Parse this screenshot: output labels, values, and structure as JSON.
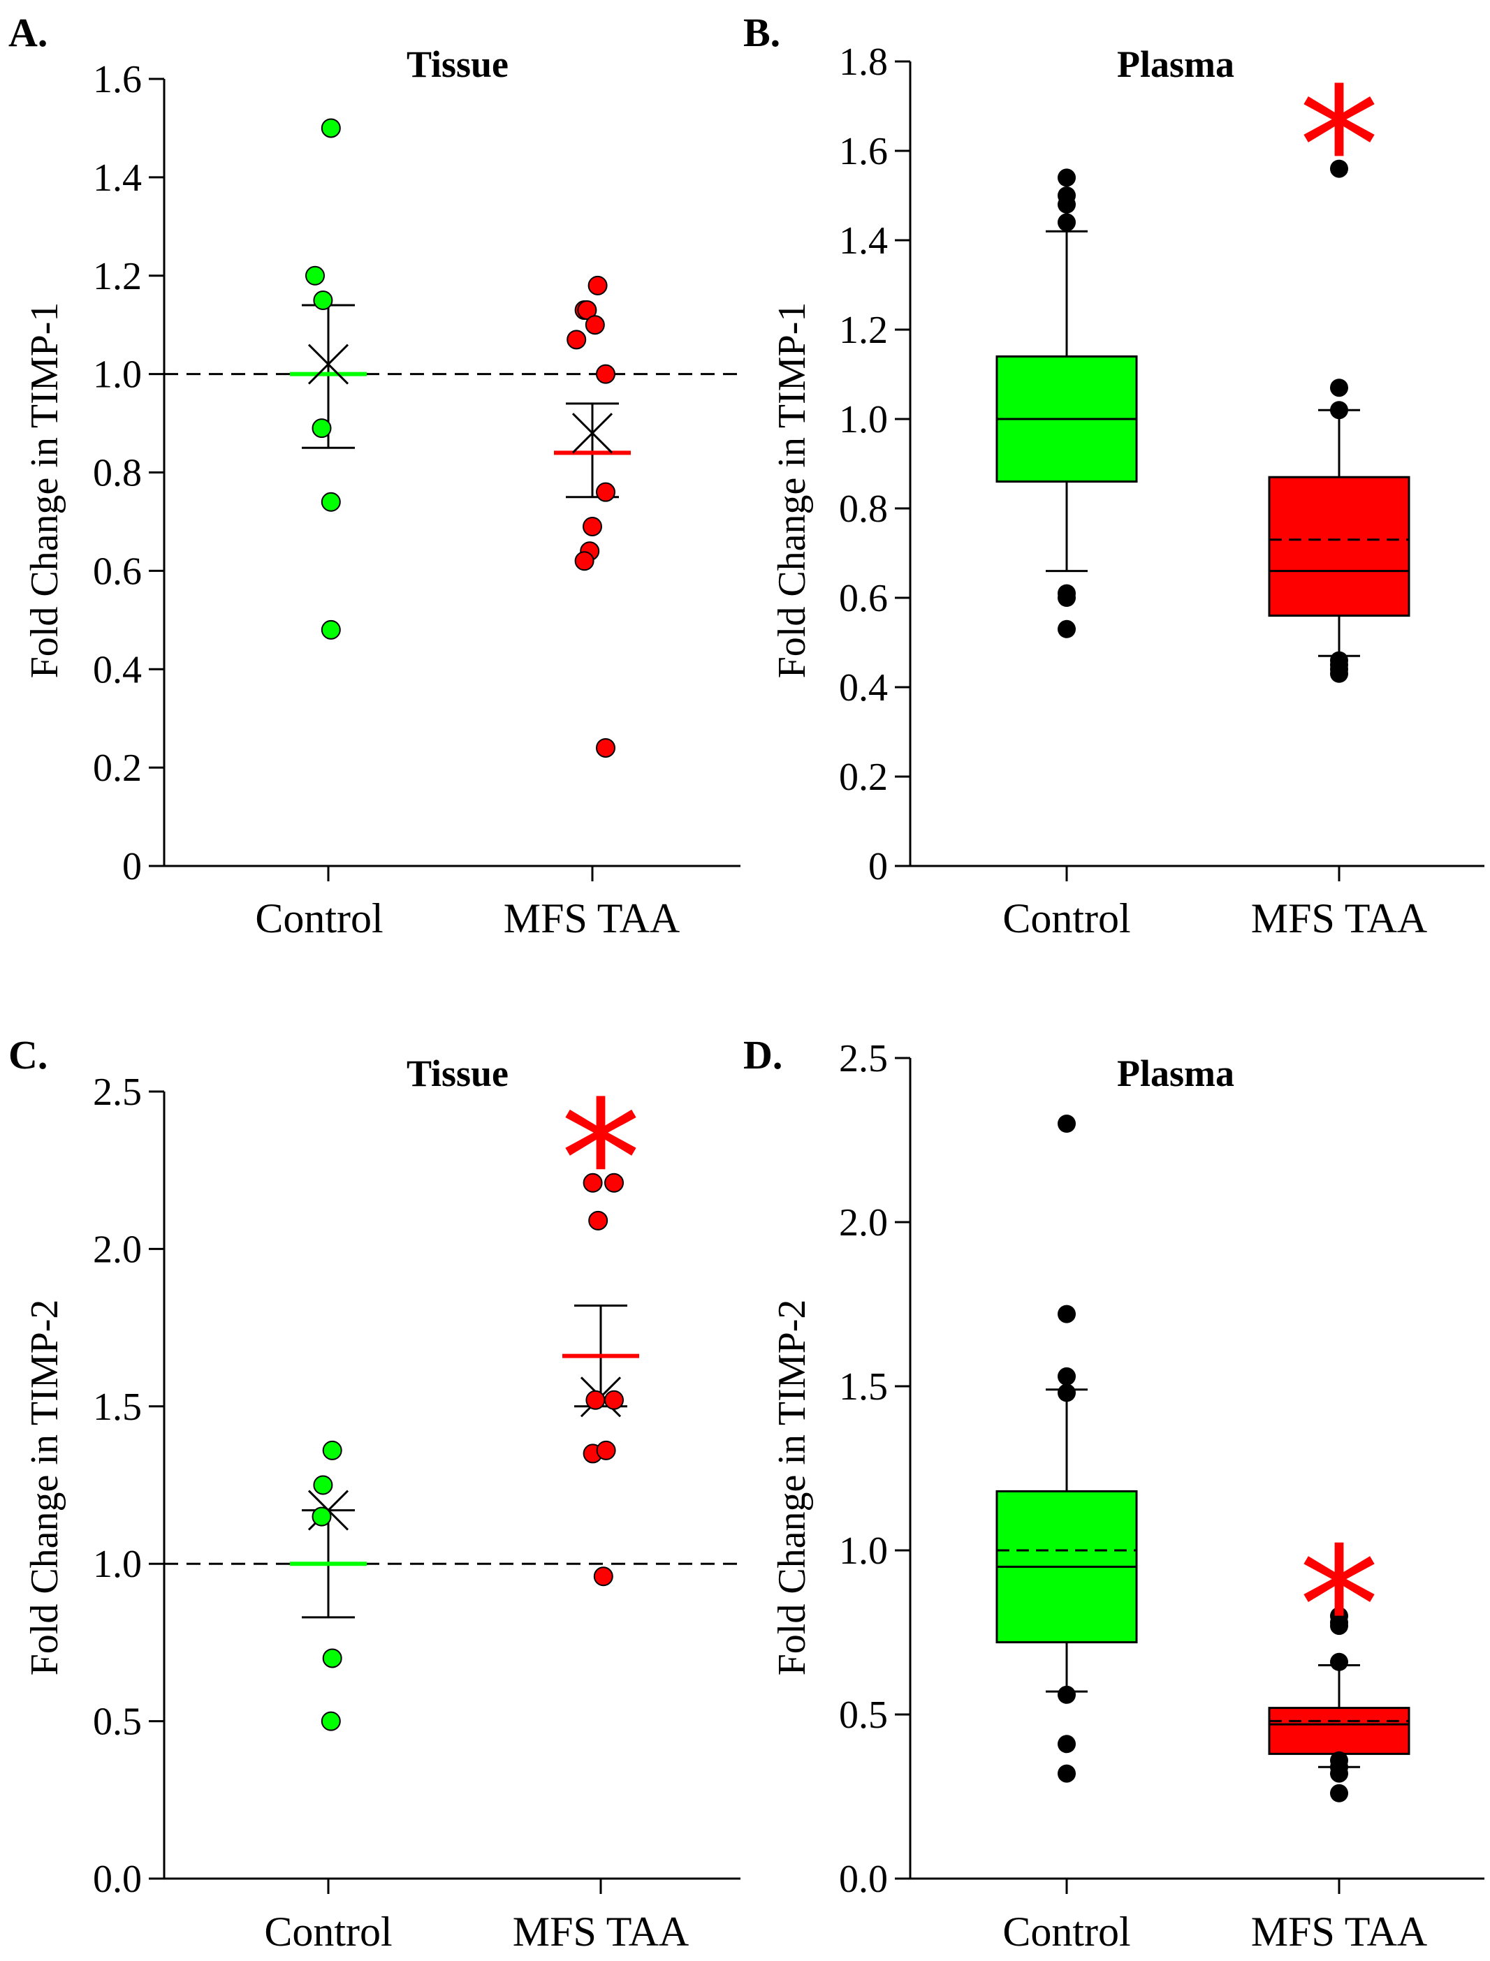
{
  "colors": {
    "control": "#00ff00",
    "mfs": "#ff0000",
    "outlier": "#000000",
    "asterisk": "#ff0000"
  },
  "chart_data": [
    {
      "id": "A",
      "panel_label": "A.",
      "type": "scatter",
      "title": "Tissue",
      "ylabel": "Fold Change  in  TIMP-1",
      "ylim": [
        0,
        1.6
      ],
      "yticks": [
        0,
        0.2,
        0.4,
        0.6,
        0.8,
        1.0,
        1.2,
        1.4,
        1.6
      ],
      "ytick_labels": [
        "0",
        "0.2",
        "0.4",
        "0.6",
        "0.8",
        "1.0",
        "1.2",
        "1.4",
        "1.6"
      ],
      "categories": [
        "Control",
        "MFS TAA"
      ],
      "reference_line": 1.0,
      "groups": [
        {
          "name": "Control",
          "color": "control",
          "points": [
            [
              -0.1,
              1.2
            ],
            [
              -0.04,
              1.15
            ],
            [
              0.02,
              1.5
            ],
            [
              -0.05,
              0.89
            ],
            [
              0.02,
              0.74
            ],
            [
              0.02,
              0.48
            ]
          ],
          "mean_line": 1.0,
          "mean_marker": 1.02,
          "err_upper": 1.14,
          "err_lower": 0.85
        },
        {
          "name": "MFS TAA",
          "color": "mfs",
          "points": [
            [
              -0.12,
              1.07
            ],
            [
              -0.06,
              1.13
            ],
            [
              -0.04,
              1.13
            ],
            [
              0.02,
              1.1
            ],
            [
              0.04,
              1.18
            ],
            [
              0.1,
              1.0
            ],
            [
              0.1,
              0.76
            ],
            [
              0.0,
              0.69
            ],
            [
              -0.02,
              0.64
            ],
            [
              -0.06,
              0.62
            ],
            [
              0.1,
              0.24
            ]
          ],
          "mean_line": 0.84,
          "mean_marker": 0.88,
          "err_upper": 0.94,
          "err_lower": 0.75
        }
      ],
      "asterisk": null
    },
    {
      "id": "B",
      "panel_label": "B.",
      "type": "box",
      "title": "Plasma",
      "ylabel": "Fold Change  in  TIMP-1",
      "ylim": [
        0,
        1.8
      ],
      "yticks": [
        0,
        0.2,
        0.4,
        0.6,
        0.8,
        1.0,
        1.2,
        1.4,
        1.6,
        1.8
      ],
      "ytick_labels": [
        "0",
        "0.2",
        "0.4",
        "0.6",
        "0.8",
        "1.0",
        "1.2",
        "1.4",
        "1.6",
        "1.8"
      ],
      "categories": [
        "Control",
        "MFS TAA"
      ],
      "groups": [
        {
          "name": "Control",
          "color": "control",
          "q1": 0.86,
          "q3": 1.14,
          "median": 1.0,
          "mean": 1.0,
          "whisker_low": 0.66,
          "whisker_high": 1.42,
          "outliers": [
            1.54,
            1.5,
            1.48,
            1.44,
            0.61,
            0.6,
            0.53
          ]
        },
        {
          "name": "MFS TAA",
          "color": "mfs",
          "q1": 0.56,
          "q3": 0.87,
          "median": 0.66,
          "mean": 0.73,
          "whisker_low": 0.47,
          "whisker_high": 1.02,
          "outliers": [
            1.56,
            1.07,
            1.02,
            0.46,
            0.45,
            0.44,
            0.43
          ]
        }
      ],
      "asterisk": {
        "group": "MFS TAA",
        "y": 1.72,
        "glyph": "*"
      }
    },
    {
      "id": "C",
      "panel_label": "C.",
      "type": "scatter",
      "title": "Tissue",
      "ylabel": "Fold Change  in  TIMP-2",
      "ylim": [
        0,
        2.5
      ],
      "yticks": [
        0,
        0.5,
        1.0,
        1.5,
        2.0,
        2.5
      ],
      "ytick_labels": [
        "0.0",
        "0.5",
        "1.0",
        "1.5",
        "2.0",
        "2.5"
      ],
      "categories": [
        "Control",
        "MFS TAA"
      ],
      "reference_line": 1.0,
      "groups": [
        {
          "name": "Control",
          "color": "control",
          "points": [
            [
              0.03,
              1.36
            ],
            [
              -0.04,
              1.25
            ],
            [
              -0.05,
              1.15
            ],
            [
              0.03,
              0.7
            ],
            [
              0.02,
              0.5
            ]
          ],
          "mean_line": 1.0,
          "mean_marker": 1.17,
          "err_upper": 1.17,
          "err_lower": 0.83
        },
        {
          "name": "MFS TAA",
          "color": "mfs",
          "points": [
            [
              -0.06,
              2.21
            ],
            [
              0.1,
              2.21
            ],
            [
              -0.02,
              2.09
            ],
            [
              -0.04,
              1.52
            ],
            [
              0.1,
              1.52
            ],
            [
              -0.06,
              1.35
            ],
            [
              0.04,
              1.36
            ],
            [
              0.02,
              0.96
            ]
          ],
          "mean_line": 1.66,
          "mean_marker": 1.53,
          "err_upper": 1.82,
          "err_lower": 1.5
        }
      ],
      "asterisk": {
        "group": "MFS TAA",
        "y": 2.44,
        "glyph": "*"
      }
    },
    {
      "id": "D",
      "panel_label": "D.",
      "type": "box",
      "title": "Plasma",
      "ylabel": "Fold Change  in  TIMP-2",
      "ylim": [
        0,
        2.5
      ],
      "yticks": [
        0,
        0.5,
        1.0,
        1.5,
        2.0,
        2.5
      ],
      "ytick_labels": [
        "0.0",
        "0.5",
        "1.0",
        "1.5",
        "2.0",
        "2.5"
      ],
      "categories": [
        "Control",
        "MFS TAA"
      ],
      "groups": [
        {
          "name": "Control",
          "color": "control",
          "q1": 0.72,
          "q3": 1.18,
          "median": 0.95,
          "mean": 1.0,
          "whisker_low": 0.57,
          "whisker_high": 1.49,
          "outliers": [
            2.3,
            1.72,
            1.53,
            1.48,
            0.56,
            0.41,
            0.32
          ]
        },
        {
          "name": "MFS TAA",
          "color": "mfs",
          "q1": 0.38,
          "q3": 0.52,
          "median": 0.47,
          "mean": 0.48,
          "whisker_low": 0.34,
          "whisker_high": 0.65,
          "outliers": [
            0.8,
            0.78,
            0.77,
            0.66,
            0.36,
            0.34,
            0.32,
            0.26
          ]
        }
      ],
      "asterisk": {
        "group": "MFS TAA",
        "y": 0.98,
        "glyph": "*"
      }
    }
  ]
}
